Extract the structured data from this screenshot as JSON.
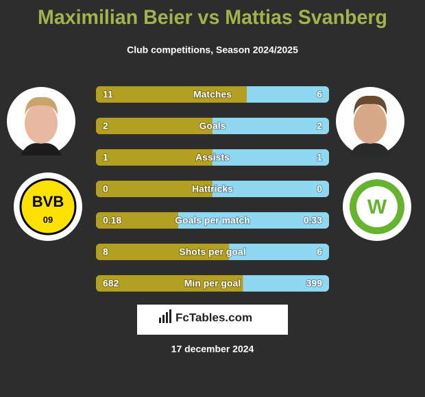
{
  "title": "Maximilian Beier vs Mattias Svanberg",
  "subtitle": "Club competitions, Season 2024/2025",
  "rows": [
    {
      "label": "Matches",
      "left": 11,
      "right": 6
    },
    {
      "label": "Goals",
      "left": 2,
      "right": 2
    },
    {
      "label": "Assists",
      "left": 1,
      "right": 1
    },
    {
      "label": "Hattricks",
      "left": 0,
      "right": 0
    },
    {
      "label": "Goals per match",
      "left": 0.18,
      "right": 0.33
    },
    {
      "label": "Shots per goal",
      "left": 8,
      "right": 6
    },
    {
      "label": "Min per goal",
      "left": 682,
      "right": 399
    }
  ],
  "left_club_badge": {
    "text": "BVB",
    "number": "09"
  },
  "right_club_badge": {
    "text": "W"
  },
  "brand": "FcTables.com",
  "date": "17 december 2024"
}
